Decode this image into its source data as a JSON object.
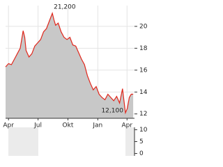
{
  "chart_data": {
    "type": "line",
    "x": [
      -9,
      0,
      9,
      18,
      27,
      36,
      45,
      50,
      54,
      63,
      72,
      81,
      90,
      99,
      108,
      117,
      126,
      135,
      140,
      145,
      153,
      162,
      171,
      180,
      189,
      198,
      207,
      216,
      225,
      234,
      243,
      252,
      261,
      270,
      279,
      288,
      297,
      306,
      315,
      324,
      333,
      342,
      351,
      360,
      366,
      372,
      378,
      384
    ],
    "series": [
      {
        "color": "#e0261b",
        "fill": "#c8c8c8",
        "values": [
          16.3,
          16.6,
          16.5,
          17.0,
          17.5,
          18.0,
          19.6,
          19.0,
          17.8,
          17.2,
          17.5,
          18.2,
          18.5,
          18.8,
          19.5,
          19.8,
          20.5,
          21.2,
          20.6,
          20.1,
          20.3,
          19.5,
          19.0,
          18.8,
          19.0,
          18.3,
          18.2,
          17.6,
          17.0,
          16.5,
          15.5,
          14.8,
          14.2,
          14.5,
          13.8,
          13.5,
          13.3,
          13.8,
          13.5,
          13.2,
          13.6,
          13.0,
          14.3,
          12.1,
          12.5,
          13.5,
          13.8,
          13.8
        ]
      }
    ],
    "xlim": [
      -9,
      388
    ],
    "xticks": [
      {
        "value": 0,
        "label": "Apr"
      },
      {
        "value": 91,
        "label": "Jul"
      },
      {
        "value": 183,
        "label": "Okt"
      },
      {
        "value": 275,
        "label": "Jan"
      },
      {
        "value": 365,
        "label": "Apr"
      }
    ],
    "ylim": [
      11.6,
      21.9
    ],
    "yticks": [
      12,
      14,
      16,
      18,
      20
    ],
    "grid": true,
    "annotations": [
      {
        "label": "21,200",
        "x": 135,
        "y": 21.2
      },
      {
        "label": "12,100",
        "x": 360,
        "y": 12.1
      }
    ],
    "volume": {
      "ylim": [
        -1,
        11
      ],
      "yticks": [
        0,
        5,
        10
      ]
    }
  }
}
